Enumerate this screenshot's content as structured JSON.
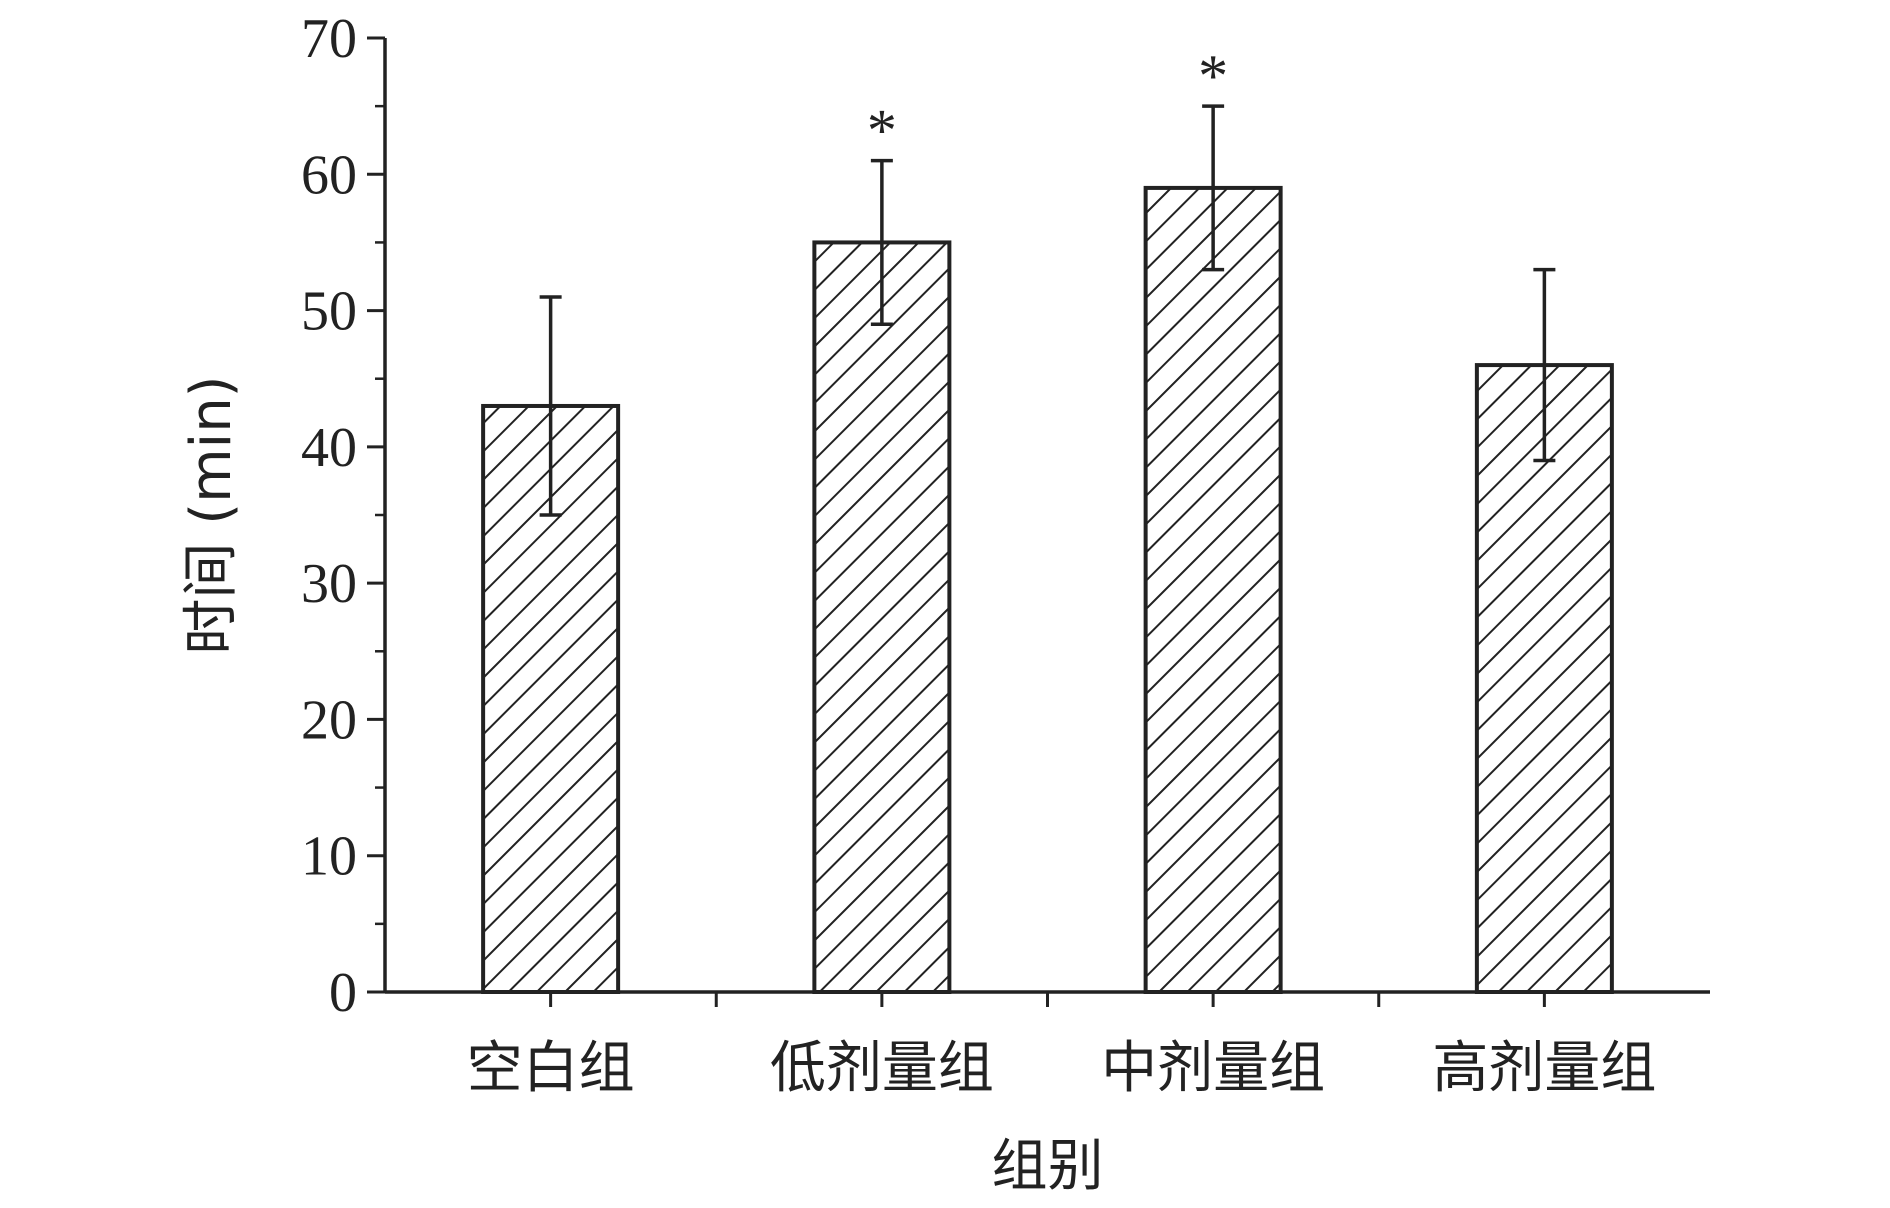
{
  "chart_data": {
    "type": "bar",
    "categories": [
      "空白组",
      "低剂量组",
      "中剂量组",
      "高剂量组"
    ],
    "values": [
      43,
      55,
      59,
      46
    ],
    "errors": [
      8,
      6,
      6,
      7
    ],
    "significance": [
      "",
      "*",
      "*",
      ""
    ],
    "xlabel": "组别",
    "ylabel": "时间 (min)",
    "ylim": [
      0,
      70
    ],
    "yticks": [
      0,
      10,
      20,
      30,
      40,
      50,
      60,
      70
    ],
    "bar_pattern": "diagonal-hatch",
    "grid": false,
    "colors": {
      "stroke": "#222222",
      "fill": "#ffffff"
    }
  }
}
